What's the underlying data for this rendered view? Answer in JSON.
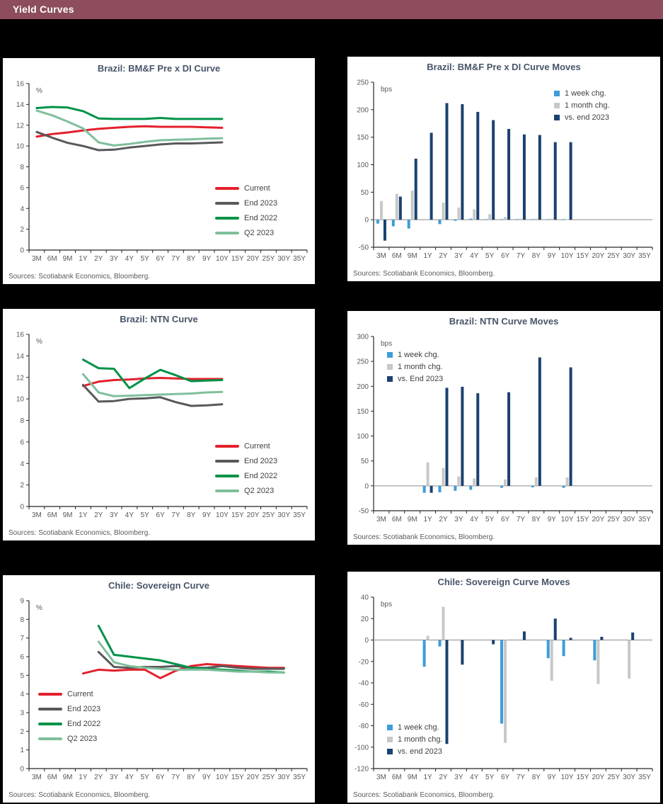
{
  "page": {
    "title": "Yield Curves"
  },
  "colors": {
    "header_bg": "#8d4d5c",
    "header_text": "#ffffff",
    "red": "#e4202c",
    "dark_gray": "#595959",
    "green": "#009247",
    "light_green": "#7fbf9b",
    "light_blue": "#3d9dd8",
    "bar_gray": "#c8c8c8",
    "navy": "#1a4270"
  },
  "chart_data": [
    {
      "type": "line",
      "title": "Brazil: BM&F Pre x DI Curve",
      "unit": "%",
      "ylabel": "%",
      "ylim": [
        0,
        16
      ],
      "ystep": 2,
      "grid": false,
      "legend_position": "right-middle",
      "sources": "Sources: Scotiabank Economics, Bloomberg.",
      "categories": [
        "3M",
        "6M",
        "9M",
        "1Y",
        "2Y",
        "3Y",
        "4Y",
        "5Y",
        "6Y",
        "7Y",
        "8Y",
        "9Y",
        "10Y",
        "15Y",
        "20Y",
        "25Y",
        "30Y",
        "35Y"
      ],
      "series": [
        {
          "name": "Current",
          "color": "#e4202c",
          "values": [
            10.9,
            11.15,
            11.3,
            11.5,
            11.65,
            11.75,
            11.85,
            11.9,
            11.85,
            11.85,
            11.85,
            11.8,
            11.75,
            null,
            null,
            null,
            null,
            null
          ]
        },
        {
          "name": "End 2023",
          "color": "#595959",
          "values": [
            11.35,
            10.8,
            10.3,
            10.0,
            9.6,
            9.65,
            9.85,
            10.0,
            10.15,
            10.25,
            10.25,
            10.3,
            10.35,
            null,
            null,
            null,
            null,
            null
          ]
        },
        {
          "name": "End 2022",
          "color": "#009247",
          "values": [
            13.65,
            13.75,
            13.7,
            13.35,
            12.65,
            12.6,
            12.6,
            12.6,
            12.7,
            12.6,
            12.6,
            12.6,
            12.6,
            null,
            null,
            null,
            null,
            null
          ]
        },
        {
          "name": "Q2 2023",
          "color": "#7fbf9b",
          "values": [
            13.4,
            12.95,
            12.35,
            11.7,
            10.35,
            10.05,
            10.2,
            10.4,
            10.55,
            10.6,
            10.65,
            10.7,
            10.75,
            null,
            null,
            null,
            null,
            null
          ]
        }
      ]
    },
    {
      "type": "bar",
      "title": "Brazil: BM&F Pre x DI Curve Moves",
      "unit": "bps",
      "ylabel": "bps",
      "ylim": [
        -50,
        250
      ],
      "ystep": 50,
      "grid": false,
      "legend_position": "top-right",
      "sources": "Sources: Scotiabank Economics, Bloomberg.",
      "categories": [
        "3M",
        "6M",
        "9M",
        "1Y",
        "2Y",
        "3Y",
        "4Y",
        "5Y",
        "6Y",
        "7Y",
        "8Y",
        "9Y",
        "10Y",
        "15Y",
        "20Y",
        "25Y",
        "30Y",
        "35Y"
      ],
      "series": [
        {
          "name": "1 week chg.",
          "color": "#3d9dd8",
          "values": [
            -7,
            -12,
            -16,
            null,
            -8,
            -2,
            2,
            1,
            1,
            1,
            1,
            1,
            1,
            null,
            null,
            null,
            null,
            null
          ]
        },
        {
          "name": "1 month chg.",
          "color": "#c8c8c8",
          "values": [
            34,
            47,
            53,
            null,
            31,
            22,
            19,
            10,
            5,
            2,
            2,
            2,
            1,
            null,
            null,
            null,
            null,
            null
          ]
        },
        {
          "name": "vs. end 2023",
          "color": "#1a4270",
          "values": [
            -38,
            42,
            111,
            158,
            212,
            210,
            196,
            181,
            165,
            155,
            154,
            141,
            141,
            null,
            null,
            null,
            null,
            null
          ]
        }
      ]
    },
    {
      "type": "line",
      "title": "Brazil: NTN Curve",
      "unit": "%",
      "ylabel": "%",
      "ylim": [
        0,
        16
      ],
      "ystep": 2,
      "grid": false,
      "legend_position": "right-lower",
      "sources": "Sources: Scotiabank Economics, Bloomberg.",
      "categories": [
        "3M",
        "6M",
        "9M",
        "1Y",
        "2Y",
        "3Y",
        "4Y",
        "5Y",
        "6Y",
        "7Y",
        "8Y",
        "9Y",
        "10Y",
        "15Y",
        "20Y",
        "25Y",
        "30Y",
        "35Y"
      ],
      "series": [
        {
          "name": "Current",
          "color": "#e4202c",
          "values": [
            null,
            null,
            null,
            11.2,
            11.6,
            11.75,
            11.8,
            11.9,
            11.95,
            11.9,
            11.85,
            11.85,
            11.85,
            null,
            null,
            null,
            null,
            null
          ]
        },
        {
          "name": "End 2023",
          "color": "#595959",
          "values": [
            null,
            null,
            null,
            11.3,
            9.75,
            9.8,
            10.0,
            10.05,
            10.15,
            9.7,
            9.35,
            9.4,
            9.5,
            null,
            null,
            null,
            null,
            null
          ]
        },
        {
          "name": "End 2022",
          "color": "#009247",
          "values": [
            null,
            null,
            null,
            13.65,
            12.85,
            12.8,
            11.0,
            11.9,
            12.7,
            12.2,
            11.65,
            11.7,
            11.75,
            null,
            null,
            null,
            null,
            null
          ]
        },
        {
          "name": "Q2 2023",
          "color": "#7fbf9b",
          "values": [
            null,
            null,
            null,
            12.3,
            10.6,
            10.25,
            10.3,
            10.35,
            10.4,
            10.45,
            10.5,
            10.6,
            10.65,
            null,
            null,
            null,
            null,
            null
          ]
        }
      ]
    },
    {
      "type": "bar",
      "title": "Brazil: NTN Curve Moves",
      "unit": "bps",
      "ylabel": "bps",
      "ylim": [
        -50,
        300
      ],
      "ystep": 50,
      "grid": false,
      "legend_position": "top-left",
      "sources": "Sources: Scotiabank Economics, Bloomberg.",
      "categories": [
        "3M",
        "6M",
        "9M",
        "1Y",
        "2Y",
        "3Y",
        "4Y",
        "5Y",
        "6Y",
        "7Y",
        "8Y",
        "9Y",
        "10Y",
        "15Y",
        "20Y",
        "25Y",
        "30Y",
        "35Y"
      ],
      "series": [
        {
          "name": "1 week chg.",
          "color": "#3d9dd8",
          "values": [
            null,
            null,
            null,
            -14,
            -13,
            -10,
            -8,
            null,
            -4,
            null,
            -3,
            null,
            -4,
            null,
            null,
            null,
            null,
            null
          ]
        },
        {
          "name": "1 month chg.",
          "color": "#c8c8c8",
          "values": [
            null,
            null,
            null,
            47,
            36,
            19,
            15,
            null,
            13,
            null,
            17,
            null,
            17,
            null,
            null,
            null,
            null,
            null
          ]
        },
        {
          "name": "vs. End 2023",
          "color": "#1a4270",
          "values": [
            null,
            null,
            null,
            -14,
            197,
            199,
            186,
            null,
            188,
            null,
            258,
            null,
            238,
            null,
            null,
            null,
            null,
            null
          ]
        }
      ]
    },
    {
      "type": "line",
      "title": "Chile:  Sovereign Curve",
      "unit": "%",
      "ylabel": "%",
      "ylim": [
        0,
        9
      ],
      "ystep": 1,
      "grid": false,
      "legend_position": "lower-left",
      "sources": "Sources: Scotiabank Economics, Bloomberg.",
      "categories": [
        "3M",
        "6M",
        "9M",
        "1Y",
        "2Y",
        "3Y",
        "4Y",
        "5Y",
        "6Y",
        "7Y",
        "8Y",
        "9Y",
        "10Y",
        "15Y",
        "20Y",
        "25Y",
        "30Y",
        "35Y"
      ],
      "series": [
        {
          "name": "Current",
          "color": "#e4202c",
          "values": [
            null,
            null,
            null,
            5.1,
            5.3,
            5.25,
            5.3,
            5.3,
            4.85,
            5.25,
            5.5,
            5.6,
            5.55,
            5.5,
            5.45,
            5.4,
            5.4,
            null
          ]
        },
        {
          "name": "End 2023",
          "color": "#595959",
          "values": [
            null,
            null,
            null,
            null,
            6.25,
            5.45,
            5.4,
            5.45,
            5.45,
            5.5,
            5.4,
            5.4,
            5.5,
            5.4,
            5.35,
            5.35,
            5.35,
            null
          ]
        },
        {
          "name": "End 2022",
          "color": "#009247",
          "values": [
            null,
            null,
            null,
            null,
            7.65,
            6.1,
            6.0,
            5.9,
            5.8,
            5.6,
            5.4,
            5.35,
            5.3,
            5.25,
            5.2,
            5.2,
            5.15,
            null
          ]
        },
        {
          "name": "Q2 2023",
          "color": "#7fbf9b",
          "values": [
            null,
            null,
            null,
            null,
            6.8,
            5.7,
            5.5,
            5.4,
            5.35,
            5.3,
            5.3,
            5.3,
            5.25,
            5.2,
            5.2,
            5.15,
            5.15,
            null
          ]
        }
      ]
    },
    {
      "type": "bar",
      "title": "Chile:  Sovereign Curve Moves",
      "unit": "bps",
      "ylabel": "bps",
      "ylim": [
        -120,
        40
      ],
      "ystep": 20,
      "grid": false,
      "legend_position": "lower-left",
      "sources": "Sources: Scotiabank Economics, Bloomberg.",
      "categories": [
        "3M",
        "6M",
        "9M",
        "1Y",
        "2Y",
        "3Y",
        "4Y",
        "5Y",
        "6Y",
        "7Y",
        "8Y",
        "9Y",
        "10Y",
        "15Y",
        "20Y",
        "25Y",
        "30Y",
        "35Y"
      ],
      "series": [
        {
          "name": "1 week chg.",
          "color": "#3d9dd8",
          "values": [
            null,
            null,
            null,
            -25,
            -6,
            null,
            null,
            null,
            -78,
            null,
            null,
            -17,
            -15,
            null,
            -19,
            null,
            null,
            null
          ]
        },
        {
          "name": "1 month chg.",
          "color": "#c8c8c8",
          "values": [
            null,
            null,
            null,
            4,
            31,
            null,
            null,
            null,
            -96,
            null,
            null,
            -38,
            null,
            null,
            -41,
            null,
            -36,
            null
          ]
        },
        {
          "name": "vs. end 2023",
          "color": "#1a4270",
          "values": [
            null,
            null,
            null,
            null,
            -97,
            -23,
            null,
            -4,
            null,
            8,
            null,
            20,
            2,
            null,
            3,
            null,
            7,
            null
          ]
        }
      ]
    }
  ]
}
